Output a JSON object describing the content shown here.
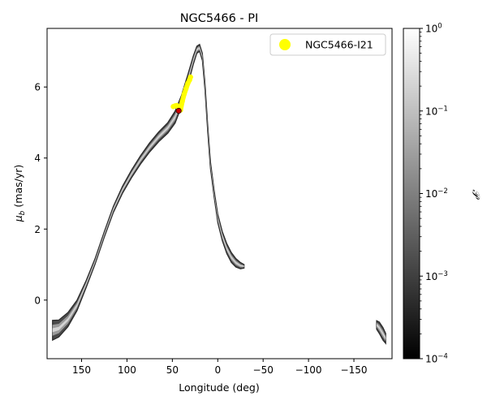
{
  "chart_data": {
    "type": "scatter",
    "title": "NGC5466 - PI",
    "xlabel": "Longitude (deg)",
    "ylabel_main": "μ",
    "ylabel_sub": "b",
    "ylabel_unit": "(mas/yr)",
    "x_reversed": true,
    "xlim": [
      188,
      -192
    ],
    "ylim": [
      -1.65,
      7.65
    ],
    "x_ticks": [
      150,
      100,
      50,
      0,
      -50,
      -100,
      -150
    ],
    "x_tick_labels": [
      "150",
      "100",
      "50",
      "0",
      "−50",
      "−100",
      "−150"
    ],
    "y_ticks": [
      0,
      2,
      4,
      6
    ],
    "y_tick_labels": [
      "0",
      "2",
      "4",
      "6"
    ],
    "legend": {
      "position": "top-right",
      "entries": [
        {
          "label": "NGC5466-I21",
          "color": "#ffff00",
          "marker": "circle"
        }
      ]
    },
    "colorbar": {
      "label": "𝒫",
      "scale": "log",
      "range": [
        0.0001,
        1
      ],
      "tick_values": [
        1,
        0.1,
        0.01,
        0.001,
        0.0001
      ],
      "tick_base": [
        "10",
        "10",
        "10",
        "10",
        "10"
      ],
      "tick_exp": [
        "0",
        "−1",
        "−2",
        "−3",
        "−4"
      ],
      "cmap": "gray"
    },
    "stream_band": {
      "center": [
        [
          182,
          -0.85
        ],
        [
          175,
          -0.8
        ],
        [
          165,
          -0.55
        ],
        [
          155,
          -0.15
        ],
        [
          145,
          0.45
        ],
        [
          135,
          1.1
        ],
        [
          125,
          1.85
        ],
        [
          115,
          2.55
        ],
        [
          105,
          3.1
        ],
        [
          95,
          3.55
        ],
        [
          85,
          3.95
        ],
        [
          75,
          4.3
        ],
        [
          65,
          4.6
        ],
        [
          55,
          4.85
        ],
        [
          47,
          5.15
        ],
        [
          40,
          5.6
        ],
        [
          33,
          6.2
        ],
        [
          27,
          6.75
        ],
        [
          23,
          7.05
        ],
        [
          20,
          7.1
        ],
        [
          17,
          6.85
        ],
        [
          14,
          6.0
        ],
        [
          11,
          4.8
        ],
        [
          8,
          3.8
        ],
        [
          4,
          3.0
        ],
        [
          0,
          2.3
        ],
        [
          -5,
          1.8
        ],
        [
          -10,
          1.45
        ],
        [
          -15,
          1.2
        ],
        [
          -20,
          1.05
        ],
        [
          -25,
          0.97
        ],
        [
          -29,
          0.95
        ]
      ],
      "halfwidth": [
        0.28,
        0.24,
        0.2,
        0.15,
        0.1,
        0.08,
        0.08,
        0.09,
        0.1,
        0.11,
        0.12,
        0.13,
        0.14,
        0.15,
        0.17,
        0.16,
        0.15,
        0.12,
        0.1,
        0.1,
        0.1,
        0.1,
        0.1,
        0.1,
        0.1,
        0.12,
        0.13,
        0.14,
        0.14,
        0.12,
        0.09,
        0.05
      ],
      "wrap_piece": {
        "center": [
          [
            -175,
            -0.7
          ],
          [
            -178,
            -0.78
          ],
          [
            -182,
            -0.95
          ],
          [
            -185,
            -1.08
          ]
        ],
        "halfwidth": [
          0.12,
          0.16,
          0.18,
          0.14
        ]
      }
    },
    "cluster_track": {
      "name": "NGC5466-I21",
      "points": [
        [
          49,
          5.45
        ],
        [
          47,
          5.47
        ],
        [
          45,
          5.48
        ],
        [
          43,
          5.4
        ],
        [
          41,
          5.35
        ],
        [
          39,
          5.6
        ],
        [
          37,
          5.8
        ],
        [
          35,
          5.95
        ],
        [
          33,
          6.1
        ],
        [
          31,
          6.2
        ],
        [
          30,
          6.28
        ]
      ]
    },
    "cluster_position": [
      43,
      5.33
    ]
  }
}
